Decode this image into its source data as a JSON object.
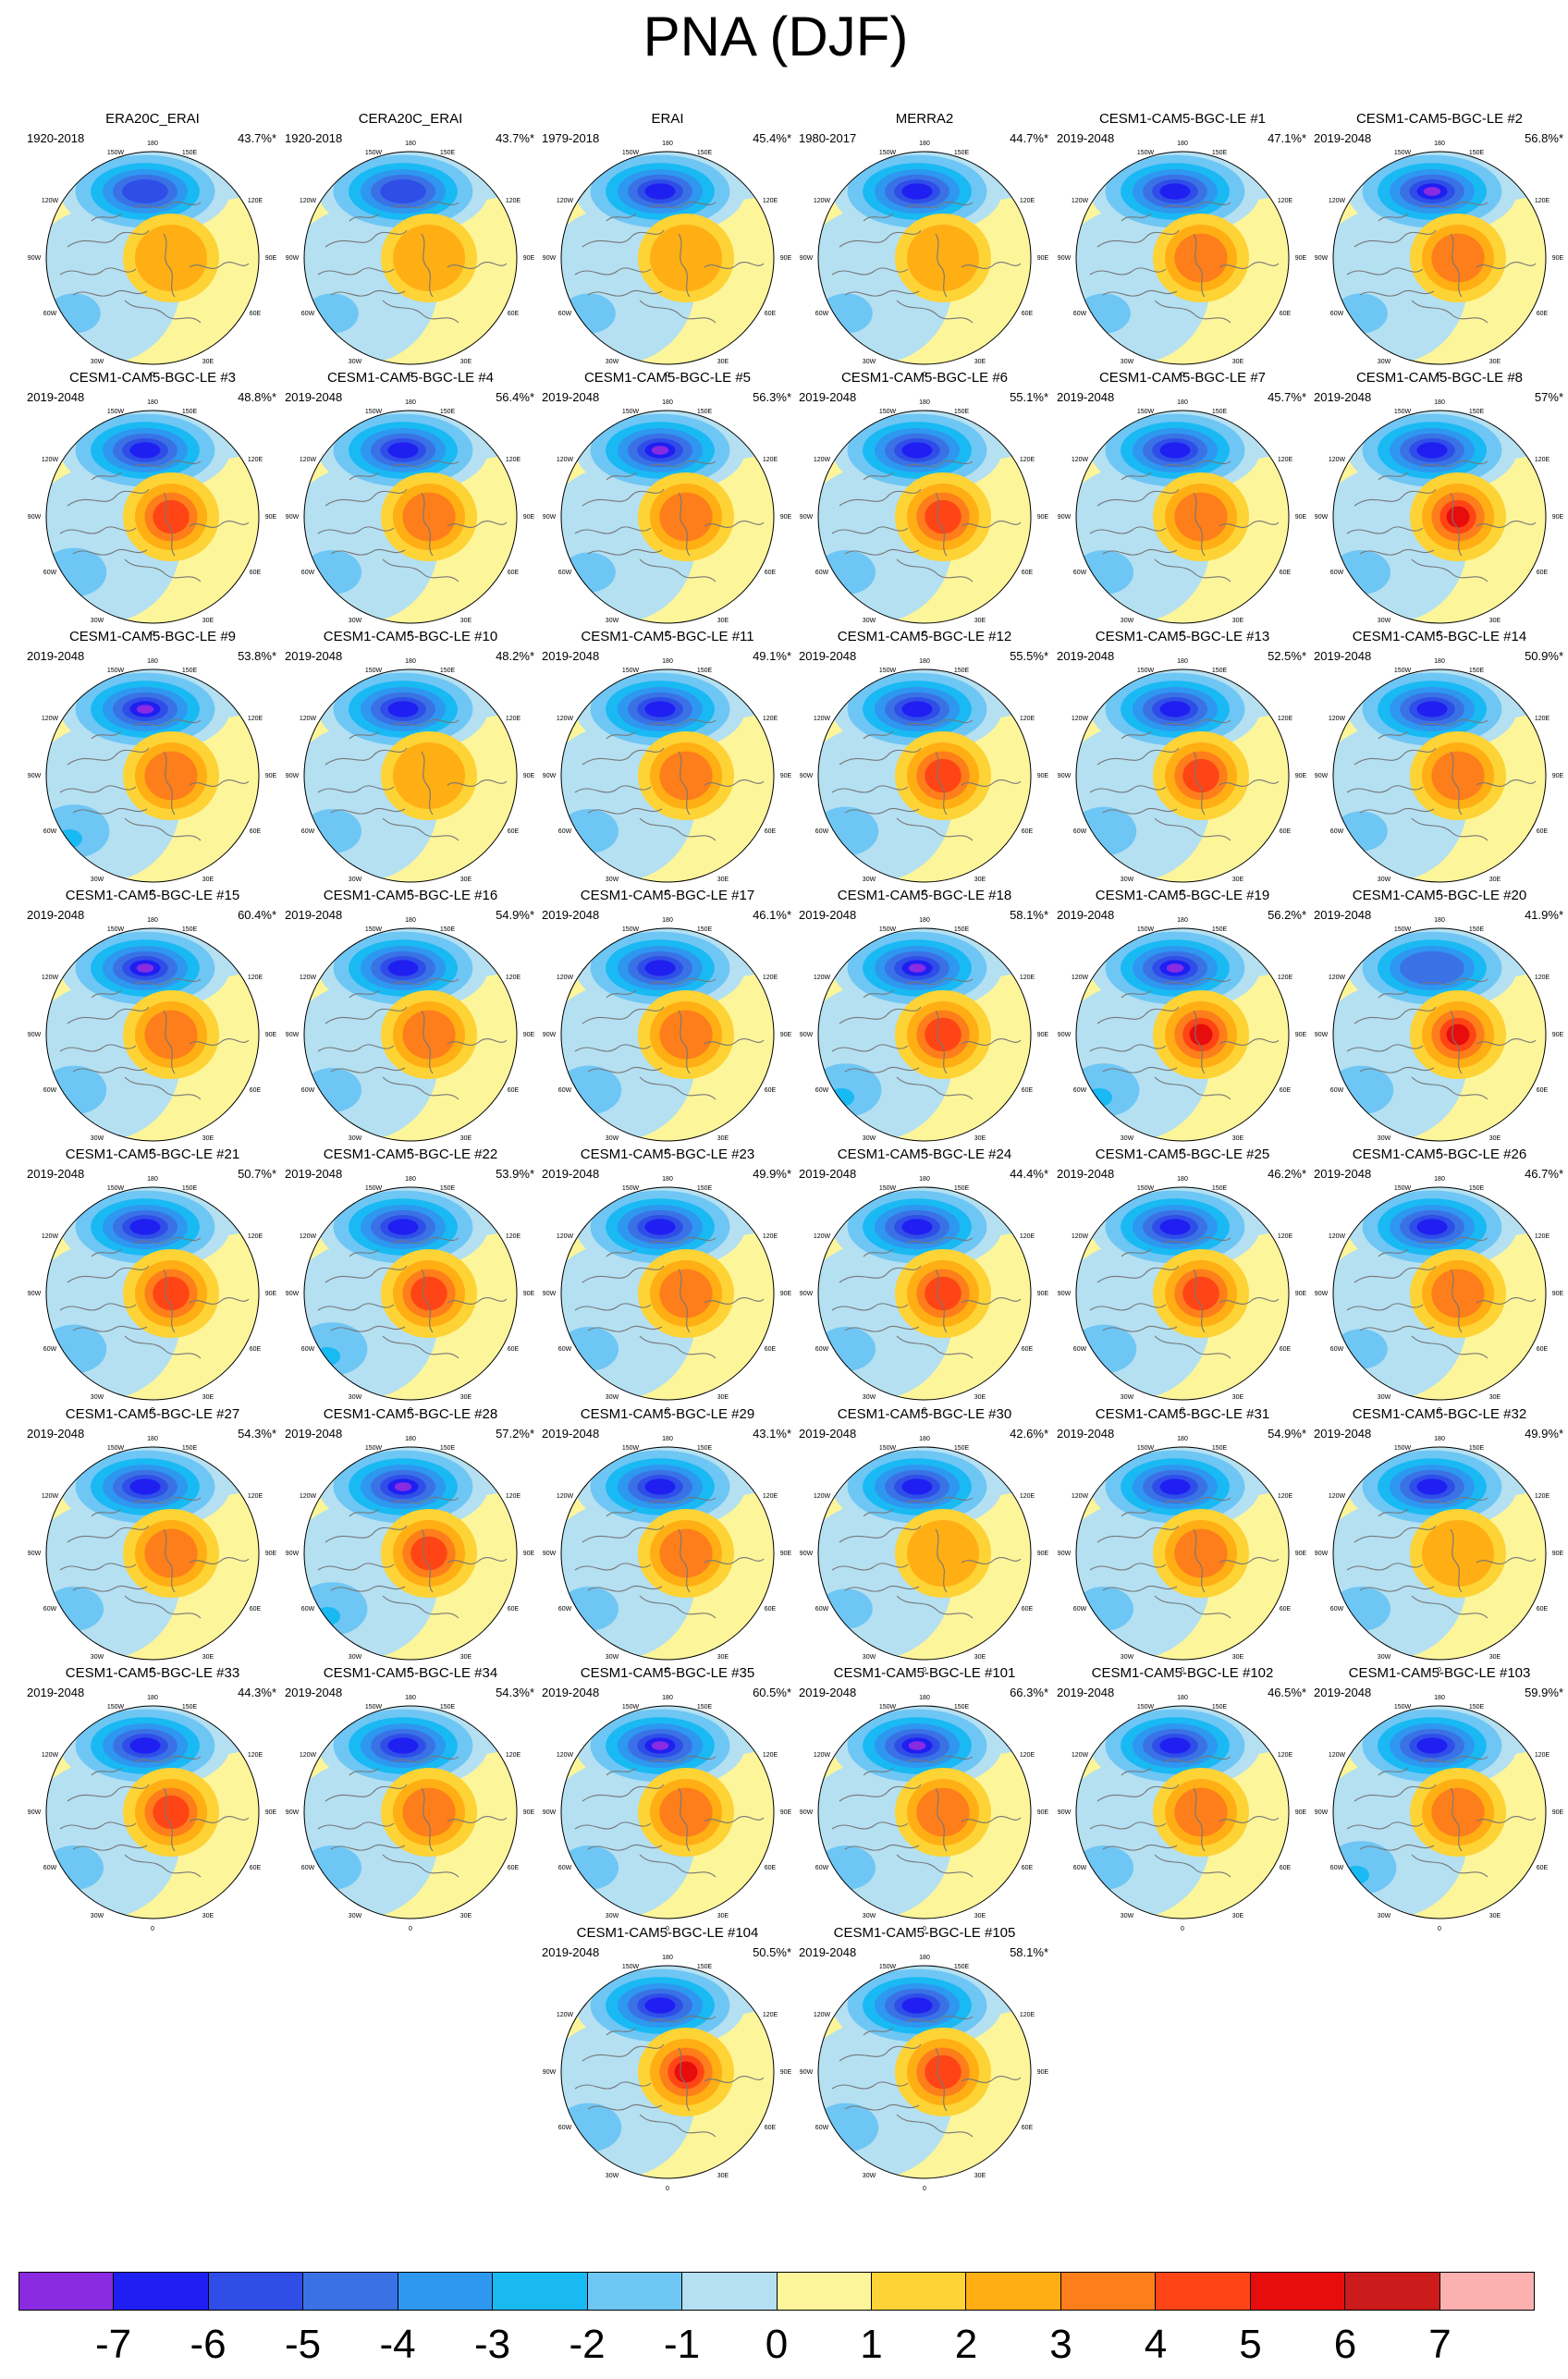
{
  "title": "PNA (DJF)",
  "colorbar": {
    "colors": [
      "#8a2be2",
      "#1f1ff2",
      "#2f4ee8",
      "#3a72e6",
      "#2e97f0",
      "#19b9f3",
      "#6ec6f4",
      "#b4e0f2",
      "#fdf59a",
      "#fdd335",
      "#ffae13",
      "#fd7e1b",
      "#ff4516",
      "#e70d0d",
      "#cb1b1b",
      "#fdb0b0"
    ],
    "labels": [
      "-7",
      "-6",
      "-5",
      "-4",
      "-3",
      "-2",
      "-1",
      "0",
      "1",
      "2",
      "3",
      "4",
      "5",
      "6",
      "7"
    ]
  },
  "map_labels": [
    "180",
    "150W",
    "150E",
    "120W",
    "120E",
    "90W",
    "90E",
    "60W",
    "60E",
    "30W",
    "30E",
    "0"
  ],
  "chart_data": {
    "type": "heatmap",
    "title": "PNA (DJF)",
    "colorbar_levels": [
      -7,
      -6,
      -5,
      -4,
      -3,
      -2,
      -1,
      0,
      1,
      2,
      3,
      4,
      5,
      6,
      7
    ],
    "panels": [
      {
        "name": "ERA20C_ERAI",
        "years": "1920-2018",
        "variance": "43.7%*",
        "neg": 0.75,
        "pos": 0.45,
        "na": 0.3
      },
      {
        "name": "CERA20C_ERAI",
        "years": "1920-2018",
        "variance": "43.7%*",
        "neg": 0.75,
        "pos": 0.45,
        "na": 0.3
      },
      {
        "name": "ERAI",
        "years": "1979-2018",
        "variance": "45.4%*",
        "neg": 0.85,
        "pos": 0.4,
        "na": 0.3
      },
      {
        "name": "MERRA2",
        "years": "1980-2017",
        "variance": "44.7%*",
        "neg": 0.85,
        "pos": 0.4,
        "na": 0.3
      },
      {
        "name": "CESM1-CAM5-BGC-LE #1",
        "years": "2019-2048",
        "variance": "47.1%*",
        "neg": 0.85,
        "pos": 0.55,
        "na": 0.3
      },
      {
        "name": "CESM1-CAM5-BGC-LE #2",
        "years": "2019-2048",
        "variance": "56.8%*",
        "neg": 0.95,
        "pos": 0.55,
        "na": 0.3
      },
      {
        "name": "CESM1-CAM5-BGC-LE #3",
        "years": "2019-2048",
        "variance": "48.8%*",
        "neg": 0.85,
        "pos": 0.75,
        "na": 0.5
      },
      {
        "name": "CESM1-CAM5-BGC-LE #4",
        "years": "2019-2048",
        "variance": "56.4%*",
        "neg": 0.9,
        "pos": 0.65,
        "na": 0.4
      },
      {
        "name": "CESM1-CAM5-BGC-LE #5",
        "years": "2019-2048",
        "variance": "56.3%*",
        "neg": 1.0,
        "pos": 0.65,
        "na": 0.3
      },
      {
        "name": "CESM1-CAM5-BGC-LE #6",
        "years": "2019-2048",
        "variance": "55.1%*",
        "neg": 0.85,
        "pos": 0.85,
        "na": 0.4
      },
      {
        "name": "CESM1-CAM5-BGC-LE #7",
        "years": "2019-2048",
        "variance": "45.7%*",
        "neg": 0.85,
        "pos": 0.55,
        "na": 0.4
      },
      {
        "name": "CESM1-CAM5-BGC-LE #8",
        "years": "2019-2048",
        "variance": "57%*",
        "neg": 0.9,
        "pos": 0.9,
        "na": 0.4
      },
      {
        "name": "CESM1-CAM5-BGC-LE #9",
        "years": "2019-2048",
        "variance": "53.8%*",
        "neg": 1.0,
        "pos": 0.65,
        "na": 0.6
      },
      {
        "name": "CESM1-CAM5-BGC-LE #10",
        "years": "2019-2048",
        "variance": "48.2%*",
        "neg": 0.8,
        "pos": 0.45,
        "na": 0.4
      },
      {
        "name": "CESM1-CAM5-BGC-LE #11",
        "years": "2019-2048",
        "variance": "49.1%*",
        "neg": 0.9,
        "pos": 0.55,
        "na": 0.4
      },
      {
        "name": "CESM1-CAM5-BGC-LE #12",
        "years": "2019-2048",
        "variance": "55.5%*",
        "neg": 0.85,
        "pos": 0.75,
        "na": 0.5
      },
      {
        "name": "CESM1-CAM5-BGC-LE #13",
        "years": "2019-2048",
        "variance": "52.5%*",
        "neg": 0.9,
        "pos": 0.8,
        "na": 0.5
      },
      {
        "name": "CESM1-CAM5-BGC-LE #14",
        "years": "2019-2048",
        "variance": "50.9%*",
        "neg": 0.85,
        "pos": 0.5,
        "na": 0.3
      },
      {
        "name": "CESM1-CAM5-BGC-LE #15",
        "years": "2019-2048",
        "variance": "60.4%*",
        "neg": 1.0,
        "pos": 0.6,
        "na": 0.5
      },
      {
        "name": "CESM1-CAM5-BGC-LE #16",
        "years": "2019-2048",
        "variance": "54.9%*",
        "neg": 0.85,
        "pos": 0.55,
        "na": 0.4
      },
      {
        "name": "CESM1-CAM5-BGC-LE #17",
        "years": "2019-2048",
        "variance": "46.1%*",
        "neg": 0.85,
        "pos": 0.65,
        "na": 0.5
      },
      {
        "name": "CESM1-CAM5-BGC-LE #18",
        "years": "2019-2048",
        "variance": "58.1%*",
        "neg": 1.0,
        "pos": 0.75,
        "na": 0.6
      },
      {
        "name": "CESM1-CAM5-BGC-LE #19",
        "years": "2019-2048",
        "variance": "56.2%*",
        "neg": 1.0,
        "pos": 0.9,
        "na": 0.6
      },
      {
        "name": "CESM1-CAM5-BGC-LE #20",
        "years": "2019-2048",
        "variance": "41.9%*",
        "neg": 0.55,
        "pos": 1.0,
        "na": 0.5
      },
      {
        "name": "CESM1-CAM5-BGC-LE #21",
        "years": "2019-2048",
        "variance": "50.7%*",
        "neg": 0.9,
        "pos": 0.7,
        "na": 0.5
      },
      {
        "name": "CESM1-CAM5-BGC-LE #22",
        "years": "2019-2048",
        "variance": "53.9%*",
        "neg": 0.9,
        "pos": 0.7,
        "na": 0.6
      },
      {
        "name": "CESM1-CAM5-BGC-LE #23",
        "years": "2019-2048",
        "variance": "49.9%*",
        "neg": 0.9,
        "pos": 0.6,
        "na": 0.4
      },
      {
        "name": "CESM1-CAM5-BGC-LE #24",
        "years": "2019-2048",
        "variance": "44.4%*",
        "neg": 0.85,
        "pos": 0.8,
        "na": 0.4
      },
      {
        "name": "CESM1-CAM5-BGC-LE #25",
        "years": "2019-2048",
        "variance": "46.2%*",
        "neg": 0.85,
        "pos": 0.75,
        "na": 0.5
      },
      {
        "name": "CESM1-CAM5-BGC-LE #26",
        "years": "2019-2048",
        "variance": "46.7%*",
        "neg": 0.8,
        "pos": 0.55,
        "na": 0.3
      },
      {
        "name": "CESM1-CAM5-BGC-LE #27",
        "years": "2019-2048",
        "variance": "54.3%*",
        "neg": 0.9,
        "pos": 0.55,
        "na": 0.4
      },
      {
        "name": "CESM1-CAM5-BGC-LE #28",
        "years": "2019-2048",
        "variance": "57.2%*",
        "neg": 1.0,
        "pos": 0.75,
        "na": 0.6
      },
      {
        "name": "CESM1-CAM5-BGC-LE #29",
        "years": "2019-2048",
        "variance": "43.1%*",
        "neg": 0.85,
        "pos": 0.55,
        "na": 0.4
      },
      {
        "name": "CESM1-CAM5-BGC-LE #30",
        "years": "2019-2048",
        "variance": "42.6%*",
        "neg": 0.8,
        "pos": 0.4,
        "na": 0.3
      },
      {
        "name": "CESM1-CAM5-BGC-LE #31",
        "years": "2019-2048",
        "variance": "54.9%*",
        "neg": 0.9,
        "pos": 0.55,
        "na": 0.4
      },
      {
        "name": "CESM1-CAM5-BGC-LE #32",
        "years": "2019-2048",
        "variance": "49.9%*",
        "neg": 0.85,
        "pos": 0.45,
        "na": 0.4
      },
      {
        "name": "CESM1-CAM5-BGC-LE #33",
        "years": "2019-2048",
        "variance": "44.3%*",
        "neg": 0.85,
        "pos": 0.85,
        "na": 0.4
      },
      {
        "name": "CESM1-CAM5-BGC-LE #34",
        "years": "2019-2048",
        "variance": "54.3%*",
        "neg": 0.9,
        "pos": 0.55,
        "na": 0.4
      },
      {
        "name": "CESM1-CAM5-BGC-LE #35",
        "years": "2019-2048",
        "variance": "60.5%*",
        "neg": 1.0,
        "pos": 0.6,
        "na": 0.4
      },
      {
        "name": "CESM1-CAM5-BGC-LE #101",
        "years": "2019-2048",
        "variance": "66.3%*",
        "neg": 1.0,
        "pos": 0.6,
        "na": 0.4
      },
      {
        "name": "CESM1-CAM5-BGC-LE #102",
        "years": "2019-2048",
        "variance": "46.5%*",
        "neg": 0.85,
        "pos": 0.6,
        "na": 0.4
      },
      {
        "name": "CESM1-CAM5-BGC-LE #103",
        "years": "2019-2048",
        "variance": "59.9%*",
        "neg": 0.9,
        "pos": 0.65,
        "na": 0.6
      },
      {
        "name": "CESM1-CAM5-BGC-LE #104",
        "years": "2019-2048",
        "variance": "50.5%*",
        "neg": 0.9,
        "pos": 0.9,
        "na": 0.5
      },
      {
        "name": "CESM1-CAM5-BGC-LE #105",
        "years": "2019-2048",
        "variance": "58.1%*",
        "neg": 0.9,
        "pos": 0.75,
        "na": 0.5
      }
    ]
  }
}
